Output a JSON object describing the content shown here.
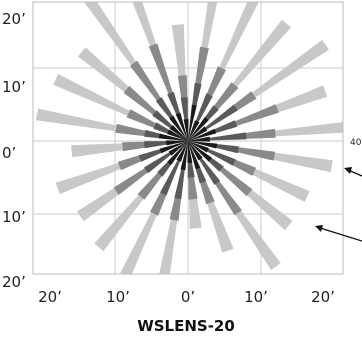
{
  "chart_data": {
    "type": "radial-bar",
    "title": "WSLENS-20",
    "x_tick_labels": [
      "20’",
      "10’",
      "0’",
      "10’",
      "20’"
    ],
    "y_tick_labels": [
      "20’",
      "10’",
      "0’",
      "10’",
      "20’"
    ],
    "x_range": [
      -22,
      22
    ],
    "y_range": [
      -22,
      22
    ],
    "grid": true,
    "ray_angles_deg": [
      5,
      20,
      35,
      50,
      65,
      80,
      95,
      110,
      125,
      140,
      155,
      170,
      185,
      200,
      215,
      230,
      245,
      260,
      275,
      290,
      305,
      320,
      335,
      350
    ],
    "series": [
      {
        "color": "#c8c8c8",
        "lengths": [
          24,
          20,
          23,
          21,
          24,
          25,
          16,
          26,
          26,
          19,
          20,
          21,
          16,
          19,
          18,
          19,
          22,
          21,
          12,
          16,
          21,
          18,
          18,
          20
        ]
      },
      {
        "color": "#8a8a8a",
        "lengths": [
          12,
          13,
          11,
          10,
          11,
          13,
          9,
          14,
          13,
          11,
          9,
          10,
          9,
          10,
          12,
          10,
          11,
          11,
          8,
          9,
          12,
          11,
          10,
          12
        ]
      },
      {
        "color": "#5a5a5a",
        "lengths": [
          8,
          7,
          8,
          6,
          7,
          8,
          6,
          7,
          7,
          6,
          5,
          6,
          6,
          7,
          7,
          6,
          8,
          8,
          5,
          6,
          7,
          6,
          7,
          7
        ]
      },
      {
        "color": "#1a1a1a",
        "lengths": [
          3,
          4,
          3,
          4,
          3,
          5,
          3,
          4,
          4,
          3,
          3,
          4,
          3,
          4,
          3,
          4,
          3,
          4,
          3,
          4,
          3,
          4,
          3,
          4
        ]
      }
    ]
  },
  "side_annotations": [
    {
      "text": "40"
    }
  ]
}
